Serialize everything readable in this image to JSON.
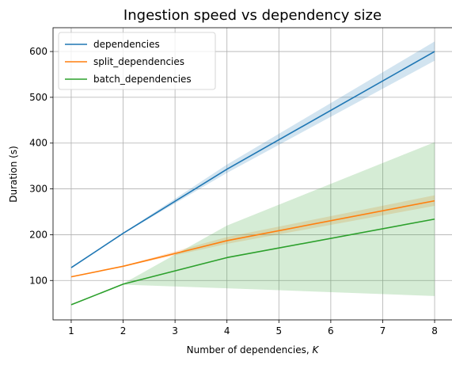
{
  "chart_data": {
    "type": "line",
    "title": "Ingestion speed vs dependency size",
    "xlabel": "Number of dependencies, K",
    "xlabel_main": "Number of dependencies, ",
    "xlabel_var": "K",
    "ylabel": "Duration (s)",
    "xlim": [
      0.65,
      8.35
    ],
    "ylim": [
      14,
      652
    ],
    "xticks": [
      1,
      2,
      3,
      4,
      5,
      6,
      7,
      8
    ],
    "yticks": [
      100,
      200,
      300,
      400,
      500,
      600
    ],
    "grid": true,
    "legend_position": "top-left",
    "x": [
      1,
      2,
      4,
      8
    ],
    "series": [
      {
        "name": "dependencies",
        "color": "#1f77b4",
        "values": [
          128,
          203,
          343,
          600
        ],
        "lower": [
          127,
          202,
          335,
          580
        ],
        "upper": [
          129,
          204,
          353,
          622
        ]
      },
      {
        "name": "split_dependencies",
        "color": "#ff7f0e",
        "values": [
          108,
          131,
          187,
          274
        ],
        "lower": [
          107,
          130,
          180,
          263
        ],
        "upper": [
          109,
          132,
          195,
          286
        ]
      },
      {
        "name": "batch_dependencies",
        "color": "#2ca02c",
        "values": [
          47,
          92,
          150,
          234
        ],
        "lower": [
          46,
          91,
          83,
          66
        ],
        "upper": [
          48,
          93,
          220,
          402
        ]
      }
    ]
  }
}
